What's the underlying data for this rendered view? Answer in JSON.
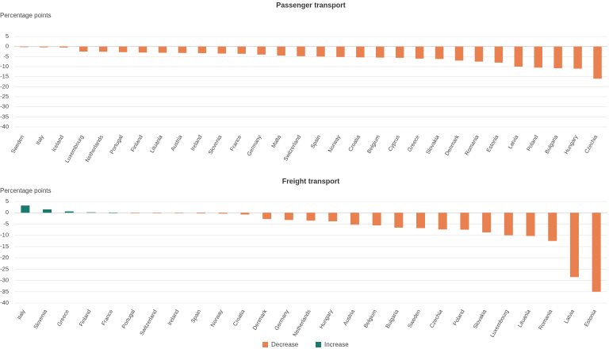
{
  "colors": {
    "decrease": "#e8804f",
    "increase": "#1a7a6e"
  },
  "legend": [
    {
      "key": "decrease",
      "label": "Decrease"
    },
    {
      "key": "increase",
      "label": "Increase"
    }
  ],
  "chart_data": [
    {
      "type": "bar",
      "title": "Passenger transport",
      "ylabel": "Percentage points",
      "ylim": [
        -40,
        5
      ],
      "yticks": [
        5,
        0,
        -5,
        -10,
        -15,
        -20,
        -25,
        -30,
        -35,
        -40
      ],
      "grid": true,
      "categories": [
        "Sweden",
        "Italy",
        "Iceland",
        "Luxembourg",
        "Netherlands",
        "Portugal",
        "Finland",
        "Lituania",
        "Austria",
        "Ireland",
        "Slovenia",
        "France",
        "Germany",
        "Malta",
        "Switzerland",
        "Spain",
        "Norway",
        "Croatia",
        "Belgium",
        "Cyprus",
        "Greece",
        "Slovakia",
        "Denmark",
        "Romania",
        "Estonia",
        "Latvia",
        "Poland",
        "Bulgaria",
        "Hungary",
        "Czechia"
      ],
      "values": [
        -0.3,
        -0.4,
        -0.5,
        -2.5,
        -2.6,
        -2.8,
        -3.0,
        -3.1,
        -3.2,
        -3.3,
        -3.5,
        -3.6,
        -4.0,
        -4.5,
        -4.8,
        -5.0,
        -5.2,
        -5.4,
        -5.5,
        -5.6,
        -6.0,
        -6.2,
        -7.0,
        -7.5,
        -8.0,
        -10.0,
        -10.5,
        -10.8,
        -11.0,
        -16.0
      ]
    },
    {
      "type": "bar",
      "title": "Freight transport",
      "ylabel": "Percentage points",
      "ylim": [
        -40,
        5
      ],
      "yticks": [
        5,
        0,
        -5,
        -10,
        -15,
        -20,
        -25,
        -30,
        -35,
        -40
      ],
      "grid": true,
      "categories": [
        "Italy",
        "Slovenia",
        "Greece",
        "Finland",
        "France",
        "Portugal",
        "Switzerland",
        "Ireland",
        "Spain",
        "Norway",
        "Croatia",
        "Denmark",
        "Germany",
        "Netherlands",
        "Hungary",
        "Austria",
        "Belgium",
        "Bulgaria",
        "Sweden",
        "Czechia",
        "Poland",
        "Slovakia",
        "Luxembourg",
        "Lituania",
        "Romania",
        "Latvia",
        "Estonia"
      ],
      "values": [
        3.2,
        1.5,
        0.6,
        0.2,
        0.1,
        -0.1,
        -0.2,
        -0.2,
        -0.3,
        -0.4,
        -0.8,
        -2.8,
        -3.2,
        -3.5,
        -3.8,
        -5.3,
        -5.6,
        -6.6,
        -6.8,
        -7.4,
        -7.5,
        -8.7,
        -10.0,
        -10.3,
        -12.5,
        -28.5,
        -35.0
      ]
    }
  ]
}
